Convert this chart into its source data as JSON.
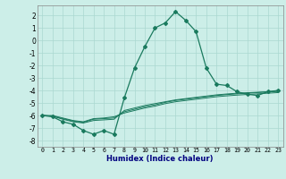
{
  "xlabel": "Humidex (Indice chaleur)",
  "x": [
    0,
    1,
    2,
    3,
    4,
    5,
    6,
    7,
    8,
    9,
    10,
    11,
    12,
    13,
    14,
    15,
    16,
    17,
    18,
    19,
    20,
    21,
    22,
    23
  ],
  "line1": [
    -6.0,
    -6.1,
    -6.5,
    -6.7,
    -7.2,
    -7.5,
    -7.2,
    -7.5,
    -4.6,
    -2.2,
    -0.5,
    1.0,
    1.4,
    2.3,
    1.6,
    0.7,
    -2.2,
    -3.5,
    -3.6,
    -4.1,
    -4.3,
    -4.4,
    -4.1,
    -4.0
  ],
  "line2": [
    -6.0,
    -6.05,
    -6.3,
    -6.5,
    -6.6,
    -6.4,
    -6.35,
    -6.3,
    -5.6,
    -5.4,
    -5.2,
    -5.05,
    -4.9,
    -4.75,
    -4.65,
    -4.55,
    -4.45,
    -4.35,
    -4.28,
    -4.22,
    -4.18,
    -4.14,
    -4.1,
    -4.05
  ],
  "line3": [
    -6.0,
    -6.05,
    -6.25,
    -6.45,
    -6.55,
    -6.3,
    -6.25,
    -6.2,
    -5.7,
    -5.5,
    -5.3,
    -5.15,
    -4.95,
    -4.8,
    -4.7,
    -4.6,
    -4.5,
    -4.4,
    -4.33,
    -4.27,
    -4.22,
    -4.17,
    -4.12,
    -4.07
  ],
  "line4": [
    -6.0,
    -6.0,
    -6.2,
    -6.4,
    -6.5,
    -6.25,
    -6.2,
    -6.1,
    -5.8,
    -5.6,
    -5.4,
    -5.25,
    -5.05,
    -4.9,
    -4.8,
    -4.7,
    -4.6,
    -4.5,
    -4.43,
    -4.37,
    -4.32,
    -4.27,
    -4.22,
    -4.17
  ],
  "line_color": "#1a7a5e",
  "bg_color": "#cceee8",
  "grid_color": "#aad8d0",
  "ylim": [
    -8.5,
    2.8
  ],
  "yticks": [
    -8,
    -7,
    -6,
    -5,
    -4,
    -3,
    -2,
    -1,
    0,
    1,
    2
  ],
  "xticks": [
    0,
    1,
    2,
    3,
    4,
    5,
    6,
    7,
    8,
    9,
    10,
    11,
    12,
    13,
    14,
    15,
    16,
    17,
    18,
    19,
    20,
    21,
    22,
    23
  ]
}
